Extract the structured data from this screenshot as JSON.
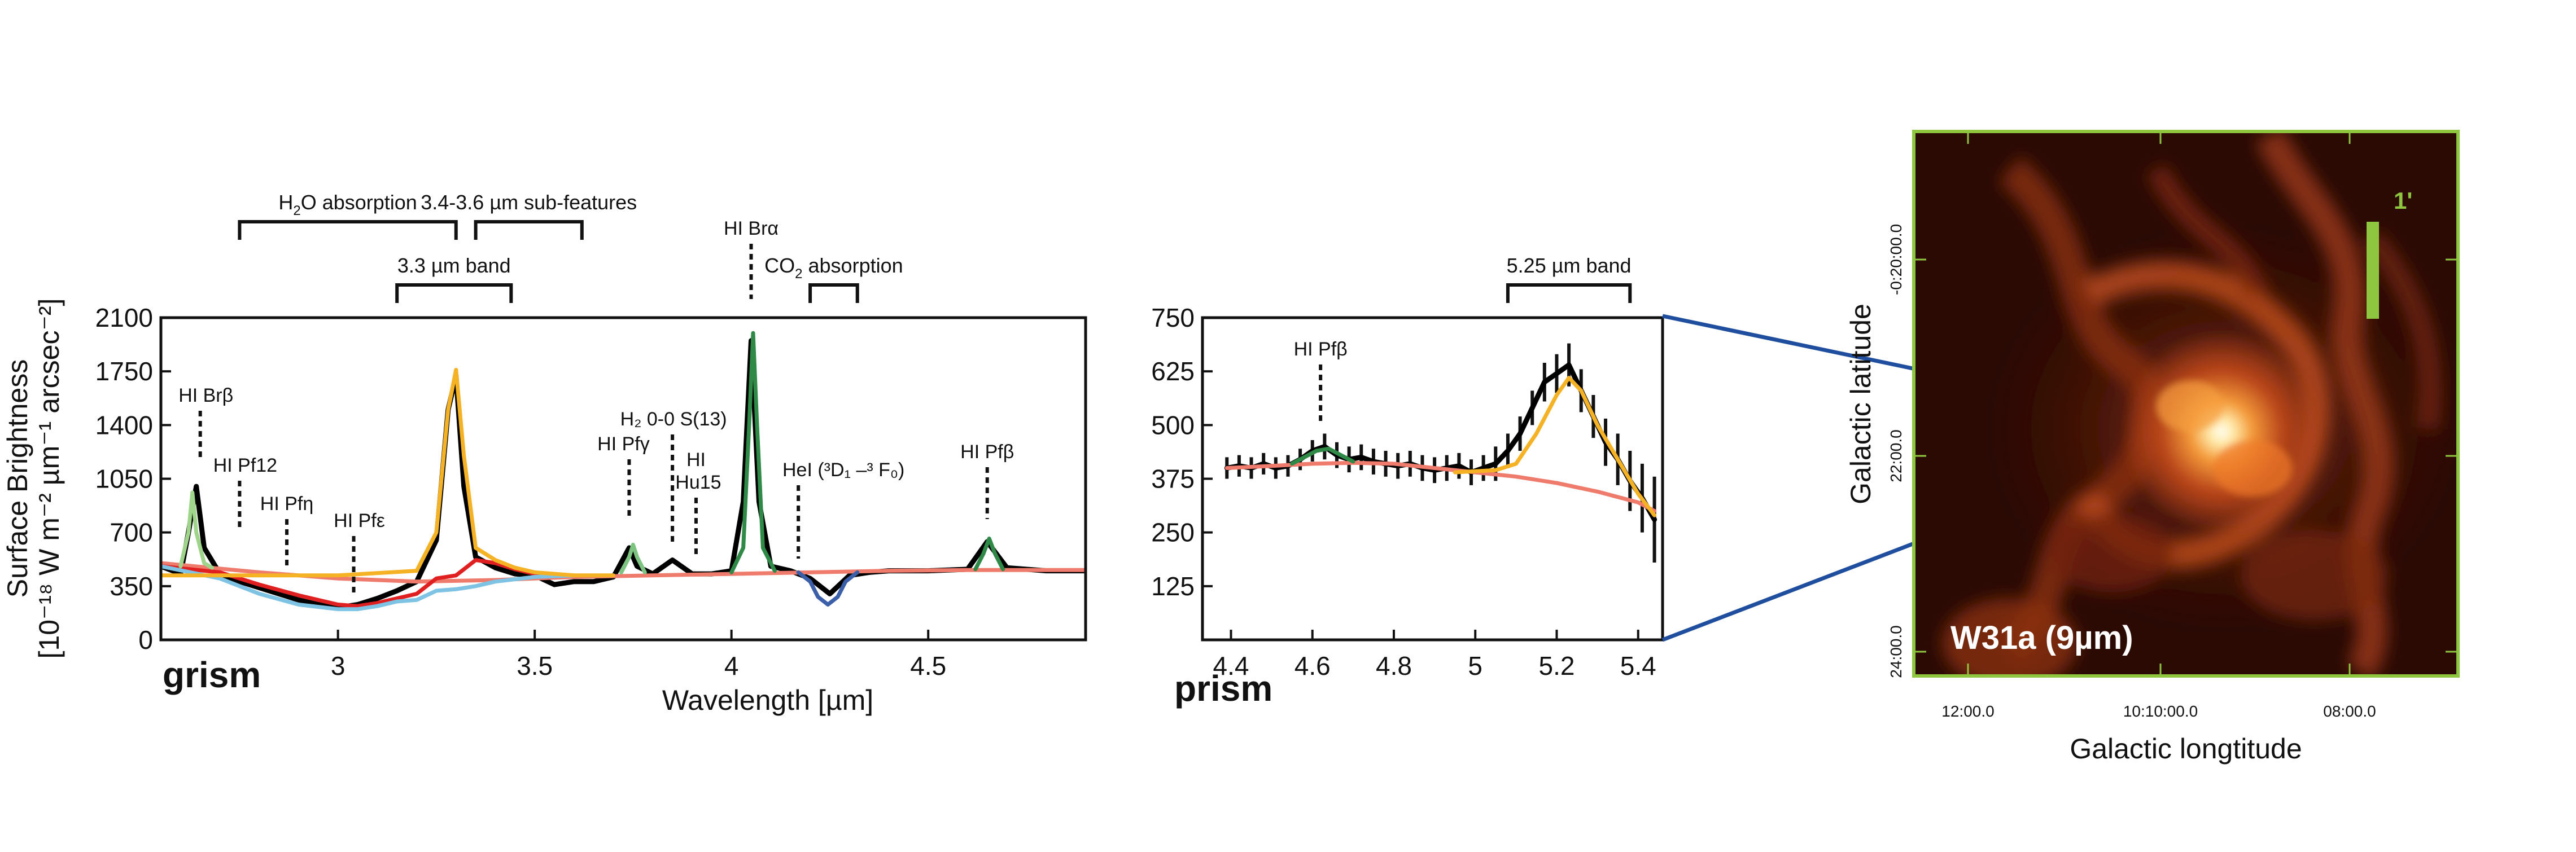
{
  "chart_data": [
    {
      "type": "line",
      "panel": "grism",
      "panel_label": "grism",
      "xlabel": "Wavelength [µm]",
      "ylabel_line1": "Surface Brightness",
      "ylabel_line2": "[10⁻¹⁸ W m⁻² µm⁻¹ arcsec⁻²]",
      "xlim": [
        2.55,
        4.9
      ],
      "ylim": [
        0,
        2100
      ],
      "xticks": [
        3,
        3.5,
        4,
        4.5
      ],
      "xtick_labels": [
        "3",
        "3.5",
        "4",
        "4.5"
      ],
      "yticks": [
        0,
        350,
        700,
        1050,
        1400,
        1750,
        2100
      ],
      "ytick_labels": [
        "0",
        "350",
        "700",
        "1050",
        "1400",
        "1750",
        "2100"
      ],
      "series": [
        {
          "role": "observed",
          "color": "#000000",
          "x": [
            2.55,
            2.6,
            2.62,
            2.64,
            2.66,
            2.7,
            2.75,
            2.8,
            2.85,
            2.9,
            2.95,
            3.0,
            3.05,
            3.1,
            3.15,
            3.2,
            3.25,
            3.28,
            3.3,
            3.32,
            3.35,
            3.4,
            3.45,
            3.5,
            3.55,
            3.6,
            3.65,
            3.7,
            3.74,
            3.76,
            3.8,
            3.85,
            3.9,
            3.95,
            4.0,
            4.03,
            4.05,
            4.07,
            4.1,
            4.15,
            4.2,
            4.25,
            4.3,
            4.35,
            4.4,
            4.5,
            4.6,
            4.65,
            4.7,
            4.8,
            4.9
          ],
          "y": [
            480,
            430,
            700,
            1000,
            600,
            430,
            380,
            340,
            300,
            260,
            230,
            210,
            230,
            270,
            320,
            380,
            650,
            1500,
            1720,
            1000,
            540,
            470,
            430,
            420,
            360,
            380,
            380,
            410,
            600,
            480,
            430,
            520,
            430,
            430,
            450,
            900,
            1950,
            900,
            480,
            450,
            400,
            300,
            420,
            440,
            450,
            450,
            460,
            640,
            470,
            450,
            450
          ]
        },
        {
          "role": "continuum",
          "color": "#ef7b6c",
          "x": [
            2.55,
            2.8,
            3.0,
            3.2,
            3.4,
            3.6,
            3.8,
            4.0,
            4.2,
            4.4,
            4.6,
            4.9
          ],
          "y": [
            500,
            440,
            400,
            380,
            390,
            410,
            420,
            430,
            440,
            450,
            455,
            455
          ]
        },
        {
          "role": "continuum-with-absorption",
          "color": "#e02020",
          "x": [
            2.55,
            2.7,
            2.8,
            2.9,
            3.0,
            3.05,
            3.1,
            3.2,
            3.25,
            3.3,
            3.35,
            3.4,
            3.45,
            3.5,
            3.55
          ],
          "y": [
            480,
            440,
            360,
            290,
            230,
            220,
            240,
            300,
            400,
            420,
            520,
            500,
            460,
            430,
            420
          ]
        },
        {
          "role": "h2o-absorption-model",
          "color": "#7ec3e4",
          "x": [
            2.55,
            2.7,
            2.8,
            2.9,
            3.0,
            3.05,
            3.1,
            3.15,
            3.2,
            3.25,
            3.3,
            3.35,
            3.4,
            3.5,
            3.6
          ],
          "y": [
            480,
            400,
            300,
            230,
            200,
            200,
            220,
            250,
            260,
            320,
            330,
            350,
            380,
            410,
            420
          ]
        },
        {
          "role": "3.3um-band",
          "color": "#f5b225",
          "x": [
            2.55,
            3.0,
            3.2,
            3.25,
            3.28,
            3.3,
            3.32,
            3.35,
            3.4,
            3.45,
            3.5,
            3.6,
            3.7
          ],
          "y": [
            420,
            420,
            450,
            700,
            1500,
            1760,
            1200,
            600,
            520,
            470,
            440,
            420,
            420
          ]
        },
        {
          "role": "brbeta-line",
          "color": "#9fd58b",
          "x": [
            2.6,
            2.62,
            2.63,
            2.64,
            2.66,
            2.68
          ],
          "y": [
            480,
            700,
            960,
            700,
            500,
            470
          ]
        },
        {
          "role": "pfgamma-line",
          "color": "#7cc47f",
          "x": [
            3.72,
            3.74,
            3.75,
            3.76,
            3.78
          ],
          "y": [
            440,
            540,
            620,
            540,
            440
          ]
        },
        {
          "role": "bralpha-line",
          "color": "#2f8a47",
          "x": [
            4.0,
            4.03,
            4.045,
            4.055,
            4.065,
            4.08,
            4.11
          ],
          "y": [
            440,
            600,
            1400,
            2000,
            1400,
            600,
            450
          ]
        },
        {
          "role": "pfbeta-line",
          "color": "#2f8a47",
          "x": [
            4.62,
            4.64,
            4.655,
            4.67,
            4.69
          ],
          "y": [
            460,
            560,
            660,
            560,
            460
          ]
        },
        {
          "role": "co2-absorption",
          "color": "#3b5fa8",
          "x": [
            4.17,
            4.2,
            4.22,
            4.245,
            4.27,
            4.29,
            4.32
          ],
          "y": [
            440,
            380,
            280,
            230,
            280,
            380,
            440
          ]
        }
      ],
      "annotations": {
        "line_ids": [
          {
            "label": "HI Brβ",
            "x": 2.65
          },
          {
            "label": "HI Pf12",
            "x": 2.75
          },
          {
            "label": "HI Pfη",
            "x": 2.87
          },
          {
            "label": "HI Pfε",
            "x": 3.04
          },
          {
            "label": "HI Pfγ",
            "x": 3.74
          },
          {
            "label": "H₂ 0-0 S(13)",
            "x": 3.85
          },
          {
            "label": "HI",
            "x": 3.91
          },
          {
            "label": "Hu15",
            "x": 3.91
          },
          {
            "label": "HI Brα",
            "x": 4.05
          },
          {
            "label": "HeI (³D₁ –³ F₀)",
            "x": 4.17
          },
          {
            "label": "HI Pfβ",
            "x": 4.65
          }
        ],
        "brackets": [
          {
            "label_main": "H",
            "label_sub": "2",
            "label_rest": "O absorption",
            "x0": 2.75,
            "x1": 3.3
          },
          {
            "label": "3.4-3.6 µm sub-features",
            "x0": 3.35,
            "x1": 3.62
          },
          {
            "label": "3.3 µm band",
            "x0": 3.15,
            "x1": 3.44
          },
          {
            "label_main": "CO",
            "label_sub": "2",
            "label_rest": " absorption",
            "x0": 4.2,
            "x1": 4.32
          }
        ]
      }
    },
    {
      "type": "line",
      "panel": "prism",
      "panel_label": "prism",
      "xlim": [
        4.33,
        5.46
      ],
      "ylim": [
        0,
        750
      ],
      "xticks": [
        4.4,
        4.6,
        4.8,
        5.0,
        5.2,
        5.4
      ],
      "xtick_labels": [
        "4.4",
        "4.6",
        "4.8",
        "5",
        "5.2",
        "5.4"
      ],
      "yticks": [
        125,
        250,
        375,
        500,
        625,
        750
      ],
      "ytick_labels": [
        "125",
        "250",
        "375",
        "500",
        "625",
        "750"
      ],
      "series": [
        {
          "role": "observed-with-errors",
          "color": "#000000",
          "x": [
            4.39,
            4.42,
            4.45,
            4.48,
            4.51,
            4.54,
            4.57,
            4.6,
            4.63,
            4.66,
            4.69,
            4.72,
            4.75,
            4.78,
            4.81,
            4.84,
            4.87,
            4.9,
            4.93,
            4.96,
            4.99,
            5.02,
            5.05,
            5.08,
            5.11,
            5.14,
            5.17,
            5.2,
            5.23,
            5.26,
            5.29,
            5.32,
            5.35,
            5.38,
            5.41,
            5.44
          ],
          "y": [
            400,
            405,
            400,
            410,
            400,
            405,
            420,
            440,
            450,
            430,
            420,
            425,
            415,
            410,
            405,
            410,
            400,
            395,
            400,
            405,
            390,
            400,
            410,
            440,
            480,
            540,
            600,
            620,
            640,
            580,
            520,
            460,
            420,
            370,
            330,
            280
          ],
          "err": [
            25,
            25,
            25,
            25,
            25,
            25,
            25,
            25,
            30,
            30,
            30,
            30,
            30,
            30,
            30,
            30,
            30,
            30,
            30,
            30,
            30,
            30,
            40,
            40,
            40,
            40,
            45,
            45,
            50,
            50,
            50,
            55,
            60,
            70,
            80,
            100
          ]
        },
        {
          "role": "continuum",
          "color": "#ef7b6c",
          "x": [
            4.39,
            4.5,
            4.6,
            4.7,
            4.8,
            4.9,
            5.0,
            5.1,
            5.2,
            5.3,
            5.4,
            5.44
          ],
          "y": [
            400,
            405,
            410,
            412,
            410,
            400,
            390,
            380,
            365,
            345,
            320,
            300
          ]
        },
        {
          "role": "pfbeta-line",
          "color": "#2f8a47",
          "x": [
            4.55,
            4.58,
            4.61,
            4.64,
            4.67,
            4.7
          ],
          "y": [
            410,
            425,
            440,
            445,
            430,
            415
          ]
        },
        {
          "role": "5.25um-band",
          "color": "#f5b225",
          "x": [
            4.95,
            5.05,
            5.1,
            5.15,
            5.2,
            5.23,
            5.26,
            5.3,
            5.35,
            5.4,
            5.44
          ],
          "y": [
            390,
            395,
            410,
            480,
            570,
            610,
            580,
            500,
            420,
            340,
            290
          ]
        }
      ],
      "annotations": {
        "line_ids": [
          {
            "label": "HI Pfβ",
            "x": 4.62
          }
        ],
        "brackets": [
          {
            "label": "5.25 µm band",
            "x0": 5.08,
            "x1": 5.38
          }
        ]
      }
    }
  ],
  "image_panel": {
    "title": "W31a (9µm)",
    "xlabel": "Galactic longtitude",
    "ylabel": "Galactic latitude",
    "xtick_labels": [
      "12:00.0",
      "10:10:00.0",
      "08:00.0"
    ],
    "ytick_labels": [
      "-0:20:00.0",
      "22:00.0",
      "24:00.0"
    ],
    "scale_bar_label": "1'",
    "frame_color": "#8fc63f",
    "scale_bar_color": "#8fc63f",
    "pointer_color": "#1f4e9e"
  }
}
